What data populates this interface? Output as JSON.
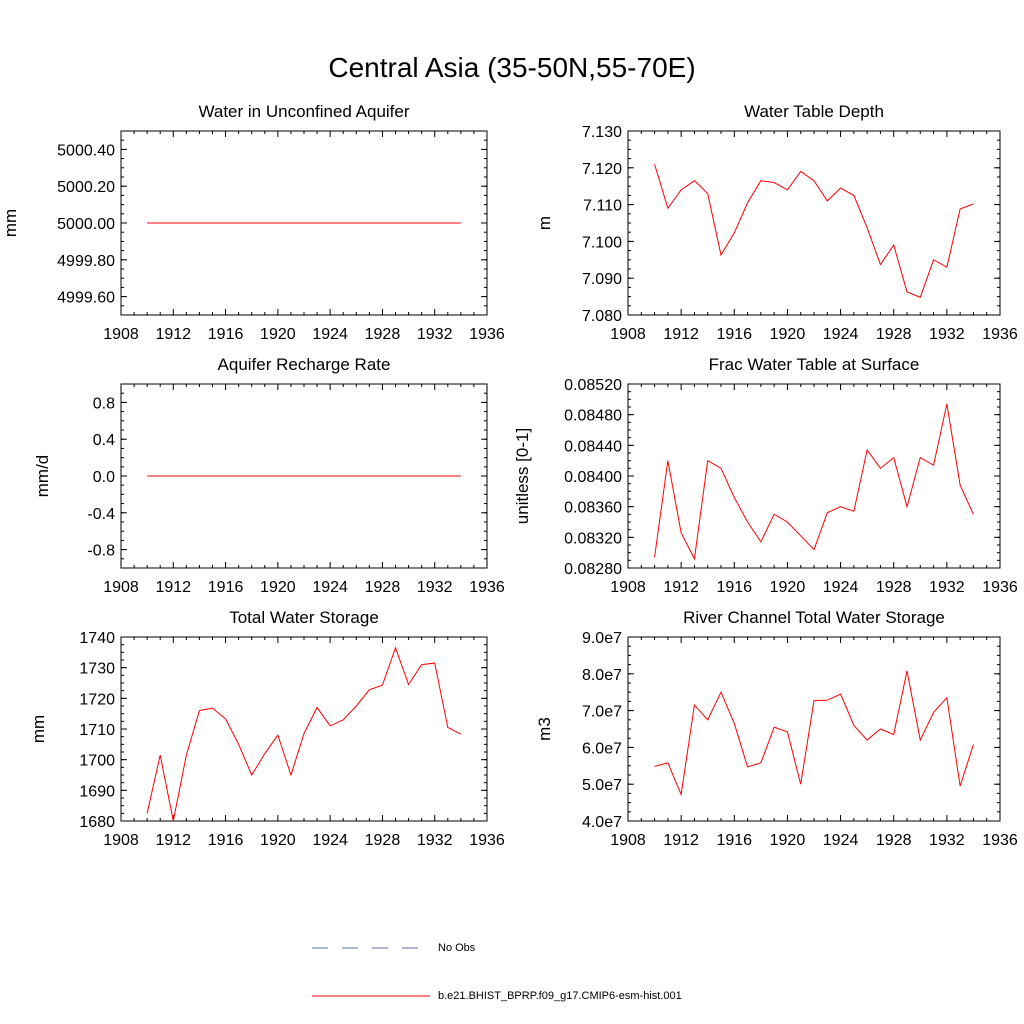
{
  "figure": {
    "title": "Central Asia (35-50N,55-70E)"
  },
  "legend": {
    "items": [
      {
        "label": "No Obs",
        "style": "dashed",
        "color": "#5f6fa8"
      },
      {
        "label": "b.e21.BHIST_BPRP.f09_g17.CMIP6-esm-hist.001",
        "style": "solid",
        "color": "#ff0000"
      }
    ]
  },
  "line_color": "#ff0000",
  "chart_data": [
    {
      "type": "line",
      "title": "Water in Unconfined Aquifer",
      "ylabel": "mm",
      "xlim": [
        1908,
        1936
      ],
      "ylim": [
        4999.5,
        5000.5
      ],
      "xticks": [
        1908,
        1912,
        1916,
        1920,
        1924,
        1928,
        1932,
        1936
      ],
      "yticks": [
        4999.6,
        4999.8,
        5000.0,
        5000.2,
        5000.4
      ],
      "ytick_labels": [
        "4999.60",
        "4999.80",
        "5000.00",
        "5000.20",
        "5000.40"
      ],
      "x": [
        1910,
        1911,
        1912,
        1913,
        1914,
        1915,
        1916,
        1917,
        1918,
        1919,
        1920,
        1921,
        1922,
        1923,
        1924,
        1925,
        1926,
        1927,
        1928,
        1929,
        1930,
        1931,
        1932,
        1933,
        1934
      ],
      "values": [
        5000.0,
        5000.0,
        5000.0,
        5000.0,
        5000.0,
        5000.0,
        5000.0,
        5000.0,
        5000.0,
        5000.0,
        5000.0,
        5000.0,
        5000.0,
        5000.0,
        5000.0,
        5000.0,
        5000.0,
        5000.0,
        5000.0,
        5000.0,
        5000.0,
        5000.0,
        5000.0,
        5000.0,
        5000.0
      ]
    },
    {
      "type": "line",
      "title": "Water Table Depth",
      "ylabel": "m",
      "xlim": [
        1908,
        1936
      ],
      "ylim": [
        7.08,
        7.13
      ],
      "xticks": [
        1908,
        1912,
        1916,
        1920,
        1924,
        1928,
        1932,
        1936
      ],
      "yticks": [
        7.08,
        7.09,
        7.1,
        7.11,
        7.12,
        7.13
      ],
      "ytick_labels": [
        "7.080",
        "7.090",
        "7.100",
        "7.110",
        "7.120",
        "7.130"
      ],
      "x": [
        1910,
        1911,
        1912,
        1913,
        1914,
        1915,
        1916,
        1917,
        1918,
        1919,
        1920,
        1921,
        1922,
        1923,
        1924,
        1925,
        1926,
        1927,
        1928,
        1929,
        1930,
        1931,
        1932,
        1933,
        1934
      ],
      "values": [
        7.121,
        7.109,
        7.114,
        7.1165,
        7.113,
        7.0963,
        7.1023,
        7.1105,
        7.1165,
        7.116,
        7.114,
        7.119,
        7.1165,
        7.111,
        7.1145,
        7.1125,
        7.1037,
        7.0937,
        7.099,
        7.0863,
        7.0848,
        7.095,
        7.093,
        7.1088,
        7.1102
      ]
    },
    {
      "type": "line",
      "title": "Aquifer Recharge Rate",
      "ylabel": "mm/d",
      "xlim": [
        1908,
        1936
      ],
      "ylim": [
        -1.0,
        1.0
      ],
      "xticks": [
        1908,
        1912,
        1916,
        1920,
        1924,
        1928,
        1932,
        1936
      ],
      "yticks": [
        -0.8,
        -0.4,
        0.0,
        0.4,
        0.8
      ],
      "ytick_labels": [
        "-0.8",
        "-0.4",
        "0.0",
        "0.4",
        "0.8"
      ],
      "x": [
        1910,
        1911,
        1912,
        1913,
        1914,
        1915,
        1916,
        1917,
        1918,
        1919,
        1920,
        1921,
        1922,
        1923,
        1924,
        1925,
        1926,
        1927,
        1928,
        1929,
        1930,
        1931,
        1932,
        1933,
        1934
      ],
      "values": [
        0,
        0,
        0,
        0,
        0,
        0,
        0,
        0,
        0,
        0,
        0,
        0,
        0,
        0,
        0,
        0,
        0,
        0,
        0,
        0,
        0,
        0,
        0,
        0,
        0
      ]
    },
    {
      "type": "line",
      "title": "Frac Water Table at Surface",
      "ylabel": "unitless [0-1]",
      "xlim": [
        1908,
        1936
      ],
      "ylim": [
        0.0828,
        0.0852
      ],
      "xticks": [
        1908,
        1912,
        1916,
        1920,
        1924,
        1928,
        1932,
        1936
      ],
      "yticks": [
        0.0828,
        0.0832,
        0.0836,
        0.084,
        0.0844,
        0.0848,
        0.0852
      ],
      "ytick_labels": [
        "0.08280",
        "0.08320",
        "0.08360",
        "0.08400",
        "0.08440",
        "0.08480",
        "0.08520"
      ],
      "x": [
        1910,
        1911,
        1912,
        1913,
        1914,
        1915,
        1916,
        1917,
        1918,
        1919,
        1920,
        1921,
        1922,
        1923,
        1924,
        1925,
        1926,
        1927,
        1928,
        1929,
        1930,
        1931,
        1932,
        1933,
        1934
      ],
      "values": [
        0.08294,
        0.0842,
        0.08326,
        0.08292,
        0.0842,
        0.0841,
        0.08372,
        0.0834,
        0.08314,
        0.0835,
        0.0834,
        0.08322,
        0.08304,
        0.08352,
        0.0836,
        0.08354,
        0.08434,
        0.0841,
        0.08424,
        0.0836,
        0.08424,
        0.08414,
        0.08494,
        0.08388,
        0.0835
      ]
    },
    {
      "type": "line",
      "title": "Total Water Storage",
      "ylabel": "mm",
      "xlim": [
        1908,
        1936
      ],
      "ylim": [
        1680,
        1740
      ],
      "xticks": [
        1908,
        1912,
        1916,
        1920,
        1924,
        1928,
        1932,
        1936
      ],
      "yticks": [
        1680,
        1690,
        1700,
        1710,
        1720,
        1730,
        1740
      ],
      "ytick_labels": [
        "1680",
        "1690",
        "1700",
        "1710",
        "1720",
        "1730",
        "1740"
      ],
      "x": [
        1910,
        1911,
        1912,
        1913,
        1914,
        1915,
        1916,
        1917,
        1918,
        1919,
        1920,
        1921,
        1922,
        1923,
        1924,
        1925,
        1926,
        1927,
        1928,
        1929,
        1930,
        1931,
        1932,
        1933,
        1934
      ],
      "values": [
        1682.5,
        1701.5,
        1680.0,
        1701.5,
        1716.0,
        1716.8,
        1713.3,
        1705.0,
        1695.0,
        1702.0,
        1708.0,
        1695.0,
        1708.5,
        1717.0,
        1711.0,
        1713.0,
        1717.5,
        1722.8,
        1724.3,
        1736.5,
        1724.5,
        1731.0,
        1731.5,
        1710.5,
        1708.3
      ]
    },
    {
      "type": "line",
      "title": "River Channel Total Water Storage",
      "ylabel": "m3",
      "xlim": [
        1908,
        1936
      ],
      "ylim": [
        40000000.0,
        90000000.0
      ],
      "xticks": [
        1908,
        1912,
        1916,
        1920,
        1924,
        1928,
        1932,
        1936
      ],
      "yticks": [
        40000000.0,
        50000000.0,
        60000000.0,
        70000000.0,
        80000000.0,
        90000000.0
      ],
      "ytick_labels": [
        "4.0e7",
        "5.0e7",
        "6.0e7",
        "7.0e7",
        "8.0e7",
        "9.0e7"
      ],
      "x": [
        1910,
        1911,
        1912,
        1913,
        1914,
        1915,
        1916,
        1917,
        1918,
        1919,
        1920,
        1921,
        1922,
        1923,
        1924,
        1925,
        1926,
        1927,
        1928,
        1929,
        1930,
        1931,
        1932,
        1933,
        1934
      ],
      "values": [
        54800000.0,
        55800000.0,
        47200000.0,
        71500000.0,
        67500000.0,
        75000000.0,
        66500000.0,
        54700000.0,
        55800000.0,
        65500000.0,
        64200000.0,
        50000000.0,
        72700000.0,
        72800000.0,
        74500000.0,
        66000000.0,
        62000000.0,
        65000000.0,
        63500000.0,
        80800000.0,
        62000000.0,
        69500000.0,
        73500000.0,
        49500000.0,
        60800000.0
      ]
    }
  ]
}
